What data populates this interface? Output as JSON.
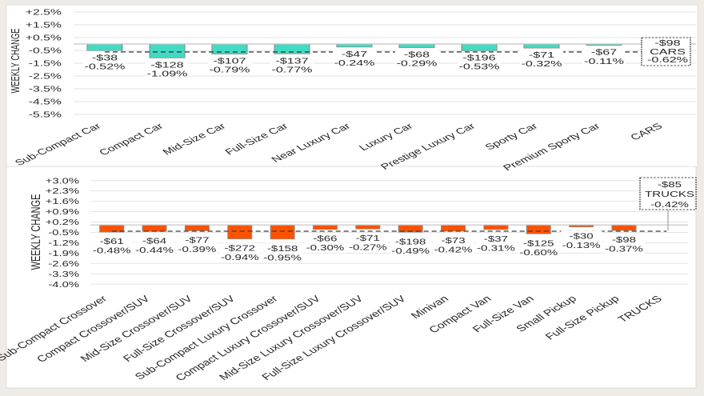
{
  "chart_data": [
    {
      "type": "bar",
      "title": "",
      "xlabel": "",
      "ylabel": "WEEKLY CHANGE",
      "ylim": [
        -5.5,
        2.5
      ],
      "yticks": [
        2.5,
        1.5,
        0.5,
        -0.5,
        -1.5,
        -2.5,
        -3.5,
        -4.5,
        -5.5
      ],
      "ytick_labels": [
        "+2.5%",
        "+1.5%",
        "+0.5%",
        "-0.5%",
        "-1.5%",
        "-2.5%",
        "-3.5%",
        "-4.5%",
        "-5.5%"
      ],
      "categories": [
        "Sub-Compact Car",
        "Compact Car",
        "Mid-Size Car",
        "Full-Size Car",
        "Near Luxury Car",
        "Luxury Car",
        "Prestige Luxury Car",
        "Sporty Car",
        "Premium Sporty Car",
        "CARS"
      ],
      "series": [
        {
          "name": "Weekly change (%)",
          "values": [
            -0.52,
            -1.09,
            -0.79,
            -0.77,
            -0.24,
            -0.29,
            -0.53,
            -0.32,
            -0.11,
            -0.62
          ]
        },
        {
          "name": "Weekly change ($)",
          "values": [
            -38,
            -128,
            -107,
            -137,
            -47,
            -68,
            -196,
            -71,
            -67,
            -98
          ]
        }
      ],
      "data_labels": [
        {
          "dollar": "-$38",
          "pct": "-0.52%"
        },
        {
          "dollar": "-$128",
          "pct": "-1.09%"
        },
        {
          "dollar": "-$107",
          "pct": "-0.79%"
        },
        {
          "dollar": "-$137",
          "pct": "-0.77%"
        },
        {
          "dollar": "-$47",
          "pct": "-0.24%"
        },
        {
          "dollar": "-$68",
          "pct": "-0.29%"
        },
        {
          "dollar": "-$196",
          "pct": "-0.53%"
        },
        {
          "dollar": "-$71",
          "pct": "-0.32%"
        },
        {
          "dollar": "-$67",
          "pct": "-0.11%"
        },
        {
          "dollar": "-$98",
          "pct": "-0.62%"
        }
      ],
      "total_index": 9,
      "reference_line": {
        "value": -0.62,
        "style": "dashed"
      },
      "bar_color": "#40dbc2",
      "grid": true,
      "legend": "none"
    },
    {
      "type": "bar",
      "title": "",
      "xlabel": "",
      "ylabel": "WEEKLY CHANGE",
      "ylim": [
        -4.0,
        3.0
      ],
      "yticks": [
        3.0,
        2.3,
        1.6,
        0.9,
        0.2,
        -0.5,
        -1.2,
        -1.9,
        -2.6,
        -3.3,
        -4.0
      ],
      "ytick_labels": [
        "+3.0%",
        "+2.3%",
        "+1.6%",
        "+0.9%",
        "+0.2%",
        "-0.5%",
        "-1.2%",
        "-1.9%",
        "-2.6%",
        "-3.3%",
        "-4.0%"
      ],
      "categories": [
        "Sub-Compact Crossover",
        "Compact Crossover/SUV",
        "Mid-Size Crossover/SUV",
        "Full-Size Crossover/SUV",
        "Sub-Compact Luxury Crossover",
        "Compact Luxury Crossover/SUV",
        "Mid-Size Luxury Crossover/SUV",
        "Full-Size Luxury Crossover/SUV",
        "Minivan",
        "Compact Van",
        "Full-Size Van",
        "Small Pickup",
        "Full-Size Pickup",
        "TRUCKS"
      ],
      "series": [
        {
          "name": "Weekly change (%)",
          "values": [
            -0.48,
            -0.44,
            -0.39,
            -0.94,
            -0.95,
            -0.3,
            -0.27,
            -0.49,
            -0.42,
            -0.31,
            -0.6,
            -0.13,
            -0.37,
            -0.42
          ]
        },
        {
          "name": "Weekly change ($)",
          "values": [
            -61,
            -64,
            -77,
            -272,
            -158,
            -66,
            -71,
            -198,
            -73,
            -37,
            -125,
            -30,
            -98,
            -85
          ]
        }
      ],
      "data_labels": [
        {
          "dollar": "-$61",
          "pct": "-0.48%"
        },
        {
          "dollar": "-$64",
          "pct": "-0.44%"
        },
        {
          "dollar": "-$77",
          "pct": "-0.39%"
        },
        {
          "dollar": "-$272",
          "pct": "-0.94%"
        },
        {
          "dollar": "-$158",
          "pct": "-0.95%"
        },
        {
          "dollar": "-$66",
          "pct": "-0.30%"
        },
        {
          "dollar": "-$71",
          "pct": "-0.27%"
        },
        {
          "dollar": "-$198",
          "pct": "-0.49%"
        },
        {
          "dollar": "-$73",
          "pct": "-0.42%"
        },
        {
          "dollar": "-$37",
          "pct": "-0.31%"
        },
        {
          "dollar": "-$125",
          "pct": "-0.60%"
        },
        {
          "dollar": "-$30",
          "pct": "-0.13%"
        },
        {
          "dollar": "-$98",
          "pct": "-0.37%"
        },
        {
          "dollar": "-$85",
          "pct": "-0.42%"
        }
      ],
      "total_index": 13,
      "reference_line": {
        "value": -0.42,
        "style": "dashed"
      },
      "bar_color": "#ff5200",
      "grid": true,
      "legend": "none"
    }
  ]
}
